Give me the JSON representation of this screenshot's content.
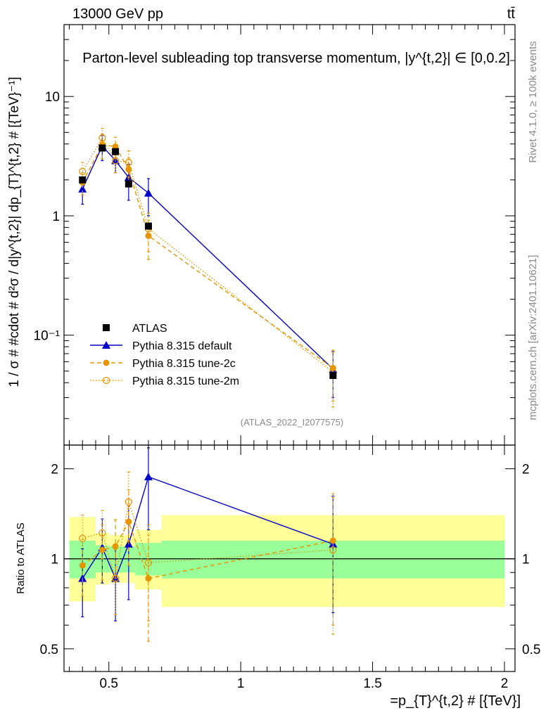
{
  "header": {
    "energy_label": "13000 GeV pp",
    "process_label": "tt̄"
  },
  "side_labels": {
    "rivet": "Rivet 4.1.0, ≥ 100k events",
    "site": "mcplots.cern.ch [arXiv:2401.10621]"
  },
  "colors": {
    "atlas": "#000000",
    "default": "#0000cc",
    "tune2c": "#e69500",
    "tune2m": "#e69500",
    "band_inner": "#99ff99",
    "band_outer": "#ffff99"
  },
  "chart_data": [
    {
      "type": "scatter",
      "panel": "main",
      "title": "Parton-level subleading top transverse momentum, |y^{t,2}| ∈ [0,0.2]",
      "ylabel": "1 / σ # #cdot # d²σ / d|y^{t,2}| dp_{T}^{t,2} # [{TeV}⁻¹]",
      "yscale": "log",
      "xlim": [
        0.33,
        2.04
      ],
      "ylim": [
        0.012,
        40
      ],
      "ytick_labels": [
        "10⁻¹",
        "1",
        "10"
      ],
      "watermark": "(ATLAS_2022_I2077575)",
      "x": [
        0.4,
        0.475,
        0.525,
        0.575,
        0.65,
        1.35
      ],
      "series": [
        {
          "name": "ATLAS",
          "key": "atlas",
          "marker": "square",
          "style": "none",
          "values": [
            2.0,
            3.7,
            3.45,
            1.85,
            0.82,
            0.046
          ]
        },
        {
          "name": "Pythia 8.315 default",
          "key": "default",
          "marker": "triangle",
          "style": "solid",
          "values": [
            1.68,
            3.85,
            2.9,
            2.1,
            1.55,
            0.052
          ],
          "err_lo": [
            1.25,
            2.9,
            2.3,
            1.35,
            1.0,
            0.03
          ],
          "err_hi": [
            2.1,
            4.7,
            3.5,
            2.7,
            2.05,
            0.073
          ]
        },
        {
          "name": "Pythia 8.315 tune-2c",
          "key": "tune2c",
          "marker": "circle",
          "style": "dashed",
          "values": [
            1.9,
            3.95,
            3.8,
            2.45,
            0.68,
            0.053
          ],
          "err_lo": [
            1.5,
            3.0,
            3.0,
            1.75,
            0.43,
            0.028
          ],
          "err_hi": [
            2.3,
            4.85,
            4.55,
            3.05,
            0.92,
            0.075
          ]
        },
        {
          "name": "Pythia 8.315 tune-2m",
          "key": "tune2m",
          "marker": "open-circle",
          "style": "dotted",
          "values": [
            2.35,
            4.5,
            2.9,
            2.8,
            0.78,
            0.049
          ],
          "err_lo": [
            1.9,
            3.7,
            2.3,
            2.1,
            0.5,
            0.025
          ],
          "err_hi": [
            2.8,
            5.4,
            3.4,
            3.5,
            1.05,
            0.072
          ]
        }
      ]
    },
    {
      "type": "scatter",
      "panel": "ratio",
      "ylabel": "Ratio to ATLAS",
      "xlabel": "=p_{T}^{t,2} # [{TeV}]",
      "yscale": "log",
      "xlim": [
        0.33,
        2.04
      ],
      "ylim": [
        0.42,
        2.4
      ],
      "xtick_labels": [
        "0.5",
        "1",
        "1.5",
        "2"
      ],
      "ytick_labels": [
        "0.5",
        "1",
        "2"
      ],
      "bands": [
        {
          "x0": 0.35,
          "x1": 0.45,
          "inner": [
            0.86,
            1.15
          ],
          "outer": [
            0.72,
            1.38
          ]
        },
        {
          "x0": 0.45,
          "x1": 0.5,
          "inner": [
            0.9,
            1.11
          ],
          "outer": [
            0.82,
            1.22
          ]
        },
        {
          "x0": 0.5,
          "x1": 0.55,
          "inner": [
            0.9,
            1.1
          ],
          "outer": [
            0.83,
            1.2
          ]
        },
        {
          "x0": 0.55,
          "x1": 0.6,
          "inner": [
            0.9,
            1.1
          ],
          "outer": [
            0.83,
            1.2
          ]
        },
        {
          "x0": 0.6,
          "x1": 0.7,
          "inner": [
            0.88,
            1.13
          ],
          "outer": [
            0.79,
            1.25
          ]
        },
        {
          "x0": 0.7,
          "x1": 2.0,
          "inner": [
            0.86,
            1.15
          ],
          "outer": [
            0.69,
            1.4
          ]
        }
      ],
      "x": [
        0.4,
        0.475,
        0.525,
        0.575,
        0.65,
        1.35
      ],
      "series": [
        {
          "name": "Pythia 8.315 default",
          "key": "default",
          "marker": "triangle",
          "style": "solid",
          "values": [
            0.86,
            1.09,
            0.86,
            1.12,
            1.88,
            1.12
          ],
          "err_lo": [
            0.64,
            0.83,
            0.62,
            0.73,
            1.25,
            0.66
          ],
          "err_hi": [
            1.08,
            1.36,
            1.08,
            1.5,
            2.35,
            1.62
          ]
        },
        {
          "name": "Pythia 8.315 tune-2c",
          "key": "tune2c",
          "marker": "circle",
          "style": "dashed",
          "values": [
            0.95,
            1.07,
            1.1,
            1.33,
            0.86,
            1.15
          ],
          "err_lo": [
            0.75,
            0.85,
            0.86,
            0.95,
            0.53,
            0.6
          ],
          "err_hi": [
            1.16,
            1.3,
            1.35,
            1.7,
            1.2,
            1.65
          ]
        },
        {
          "name": "Pythia 8.315 tune-2m",
          "key": "tune2m",
          "marker": "open-circle",
          "style": "dotted",
          "values": [
            1.17,
            1.22,
            0.86,
            1.55,
            0.97,
            1.07
          ],
          "err_lo": [
            0.95,
            1.0,
            0.65,
            1.15,
            0.62,
            0.56
          ],
          "err_hi": [
            1.4,
            1.45,
            1.07,
            1.95,
            1.3,
            1.6
          ]
        }
      ]
    }
  ]
}
